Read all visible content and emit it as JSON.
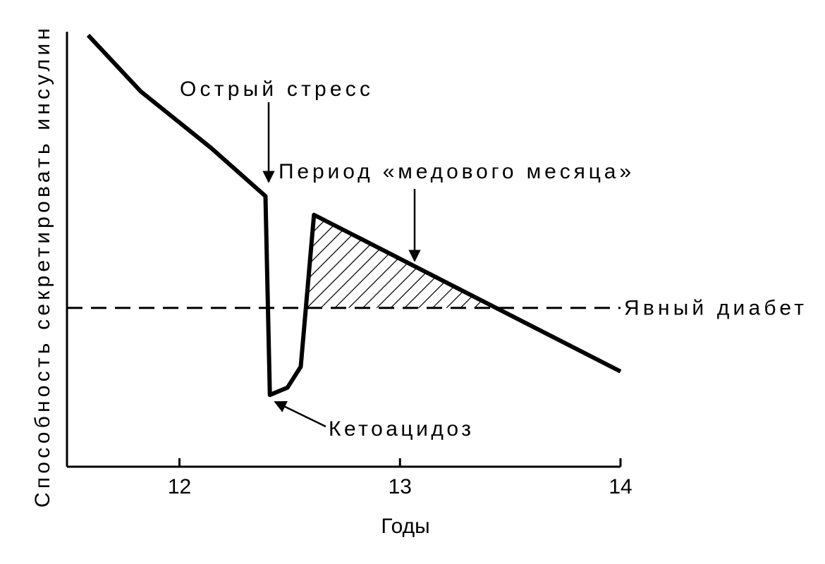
{
  "chart_data": {
    "type": "line",
    "y_label": "Способность секретировать инсулин",
    "x_label": "Годы",
    "xlim": [
      11.49,
      14
    ],
    "xticks": [
      12,
      13,
      14
    ],
    "ylim": [
      0,
      100
    ],
    "threshold": {
      "value": 36.5,
      "label": "Явный диабет"
    },
    "series": [
      {
        "color": "#000000",
        "x": [
          11.586,
          11.824,
          12.143,
          12.39,
          12.41,
          12.49,
          12.55,
          12.61,
          14.0
        ],
        "values": [
          99.2,
          86.3,
          73.3,
          62.2,
          16.5,
          18.2,
          23.0,
          57.9,
          21.9
        ]
      }
    ],
    "annotations": [
      "Острый стресс",
      "Период «медового месяца»",
      "Кетоацидоз"
    ]
  }
}
